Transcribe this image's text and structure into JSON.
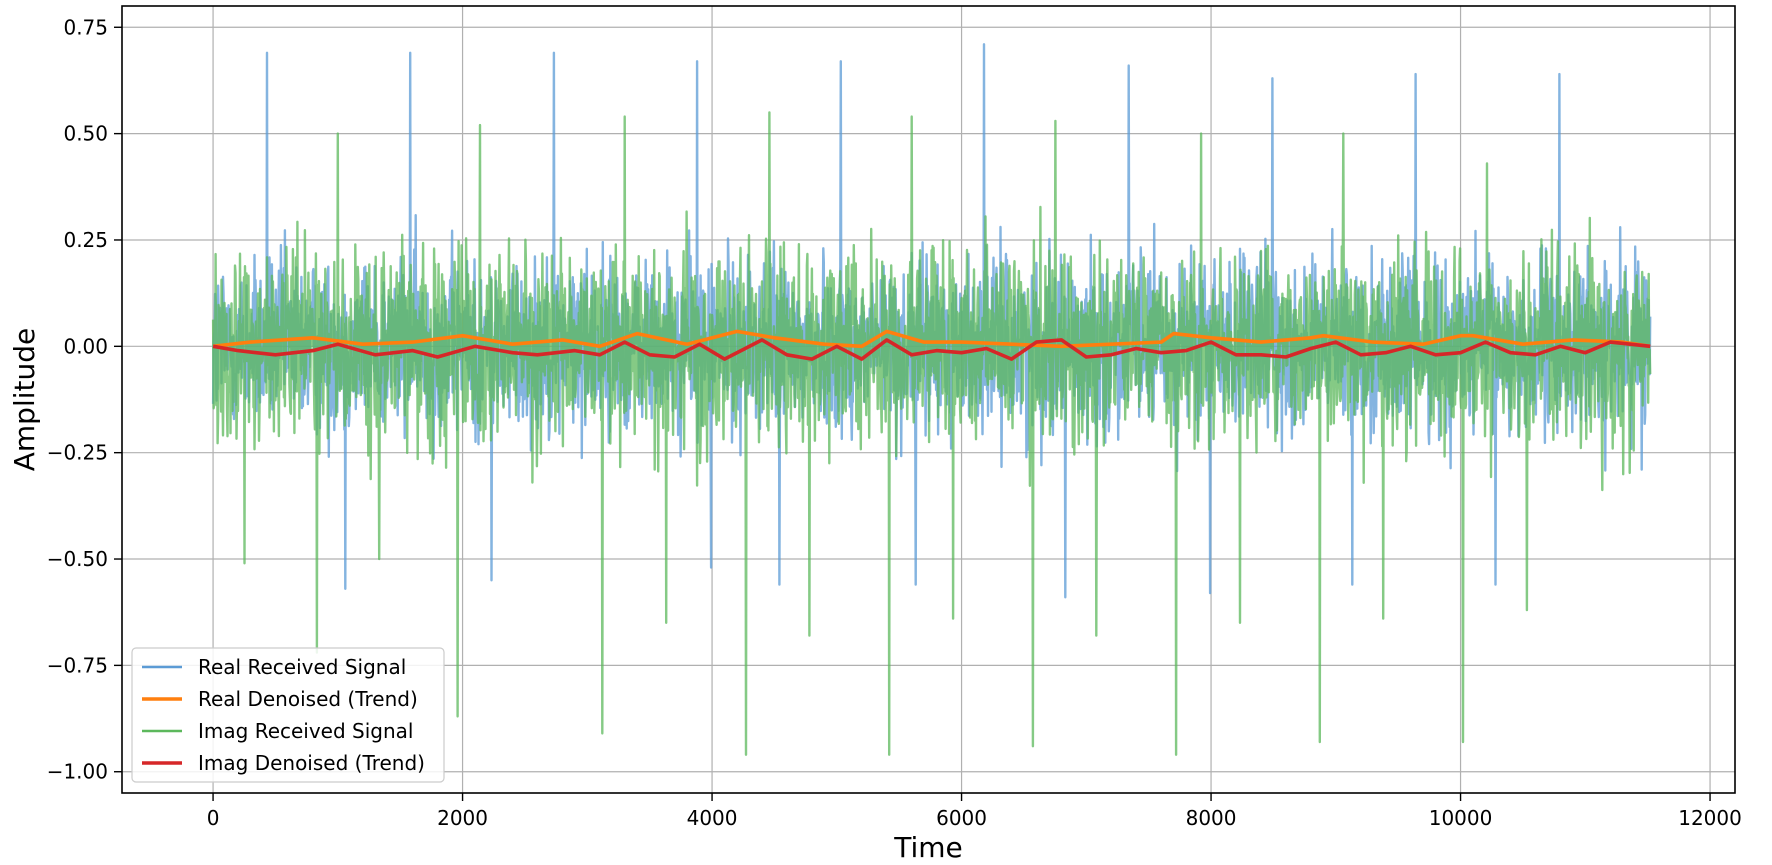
{
  "chart_data": {
    "type": "line",
    "title": "",
    "xlabel": "Time",
    "ylabel": "Amplitude",
    "xlim": [
      -730,
      12200
    ],
    "ylim": [
      -1.05,
      0.8
    ],
    "x_ticks": [
      0,
      2000,
      4000,
      6000,
      8000,
      10000,
      12000
    ],
    "x_tick_labels": [
      "0",
      "2000",
      "4000",
      "6000",
      "8000",
      "10000",
      "12000"
    ],
    "y_ticks": [
      0.75,
      0.5,
      0.25,
      0.0,
      -0.25,
      -0.5,
      -0.75,
      -1.0
    ],
    "y_tick_labels": [
      "0.75",
      "0.50",
      "0.25",
      "0.00",
      "−0.25",
      "−0.50",
      "−0.75",
      "−1.00"
    ],
    "grid": true,
    "legend_position": "lower-left",
    "series": [
      {
        "name": "Real Received Signal",
        "color": "#5b9bd5",
        "style": "noise",
        "x_range": [
          0,
          11520
        ],
        "typical_amplitude": 0.2,
        "spikes": [
          [
            430,
            0.69
          ],
          [
            1580,
            0.69
          ],
          [
            2730,
            0.69
          ],
          [
            3880,
            0.67
          ],
          [
            5030,
            0.67
          ],
          [
            6180,
            0.71
          ],
          [
            7340,
            0.66
          ],
          [
            8490,
            0.63
          ],
          [
            9640,
            0.64
          ],
          [
            10790,
            0.64
          ],
          [
            1060,
            -0.57
          ],
          [
            2230,
            -0.55
          ],
          [
            3990,
            -0.52
          ],
          [
            4540,
            -0.56
          ],
          [
            5630,
            -0.56
          ],
          [
            6830,
            -0.59
          ],
          [
            7990,
            -0.58
          ],
          [
            9130,
            -0.56
          ],
          [
            10280,
            -0.56
          ]
        ]
      },
      {
        "name": "Real Denoised (Trend)",
        "color": "#ff7f0e",
        "style": "trend",
        "x": [
          0,
          300,
          800,
          1200,
          1600,
          2000,
          2400,
          2800,
          3100,
          3400,
          3800,
          4200,
          4500,
          4900,
          5200,
          5400,
          5700,
          6000,
          6400,
          6800,
          7200,
          7600,
          7700,
          8000,
          8400,
          8800,
          8900,
          9300,
          9700,
          10000,
          10100,
          10500,
          10900,
          11300,
          11520
        ],
        "values": [
          0.0,
          0.01,
          0.02,
          0.005,
          0.01,
          0.025,
          0.005,
          0.015,
          0.0,
          0.03,
          0.005,
          0.035,
          0.02,
          0.005,
          0.0,
          0.035,
          0.01,
          0.01,
          0.005,
          0.0,
          0.005,
          0.01,
          0.03,
          0.02,
          0.01,
          0.02,
          0.025,
          0.01,
          0.005,
          0.025,
          0.025,
          0.005,
          0.015,
          0.01,
          0.0
        ]
      },
      {
        "name": "Imag Received Signal",
        "color": "#5cb85c",
        "style": "noise",
        "x_range": [
          0,
          11520
        ],
        "typical_amplitude": 0.22,
        "spikes": [
          [
            250,
            -0.51
          ],
          [
            830,
            -0.72
          ],
          [
            1330,
            -0.5
          ],
          [
            1960,
            -0.87
          ],
          [
            3120,
            -0.91
          ],
          [
            3630,
            -0.65
          ],
          [
            4270,
            -0.96
          ],
          [
            4780,
            -0.68
          ],
          [
            5420,
            -0.96
          ],
          [
            5930,
            -0.64
          ],
          [
            6570,
            -0.94
          ],
          [
            7080,
            -0.68
          ],
          [
            7720,
            -0.96
          ],
          [
            8230,
            -0.65
          ],
          [
            8870,
            -0.93
          ],
          [
            9380,
            -0.64
          ],
          [
            10020,
            -0.93
          ],
          [
            10530,
            -0.62
          ],
          [
            1000,
            0.5
          ],
          [
            2140,
            0.52
          ],
          [
            3300,
            0.54
          ],
          [
            4460,
            0.55
          ],
          [
            5600,
            0.54
          ],
          [
            6750,
            0.53
          ],
          [
            7920,
            0.5
          ],
          [
            9060,
            0.5
          ],
          [
            10210,
            0.43
          ]
        ]
      },
      {
        "name": "Imag Denoised (Trend)",
        "color": "#d62728",
        "style": "trend",
        "x": [
          0,
          200,
          500,
          800,
          1000,
          1300,
          1600,
          1800,
          2100,
          2400,
          2600,
          2900,
          3100,
          3300,
          3500,
          3700,
          3900,
          4100,
          4400,
          4600,
          4800,
          5000,
          5200,
          5400,
          5600,
          5800,
          6000,
          6200,
          6400,
          6600,
          6800,
          7000,
          7200,
          7400,
          7600,
          7800,
          8000,
          8200,
          8400,
          8600,
          8800,
          9000,
          9200,
          9400,
          9600,
          9800,
          10000,
          10200,
          10400,
          10600,
          10800,
          11000,
          11200,
          11520
        ],
        "values": [
          0.0,
          -0.01,
          -0.02,
          -0.01,
          0.005,
          -0.02,
          -0.01,
          -0.025,
          0.0,
          -0.015,
          -0.02,
          -0.01,
          -0.02,
          0.01,
          -0.02,
          -0.025,
          0.005,
          -0.03,
          0.015,
          -0.02,
          -0.03,
          0.0,
          -0.03,
          0.015,
          -0.02,
          -0.01,
          -0.015,
          -0.005,
          -0.03,
          0.01,
          0.015,
          -0.025,
          -0.02,
          -0.005,
          -0.015,
          -0.01,
          0.01,
          -0.02,
          -0.02,
          -0.025,
          -0.005,
          0.01,
          -0.02,
          -0.015,
          0.0,
          -0.02,
          -0.015,
          0.01,
          -0.015,
          -0.02,
          0.0,
          -0.015,
          0.01,
          0.0
        ]
      }
    ]
  }
}
